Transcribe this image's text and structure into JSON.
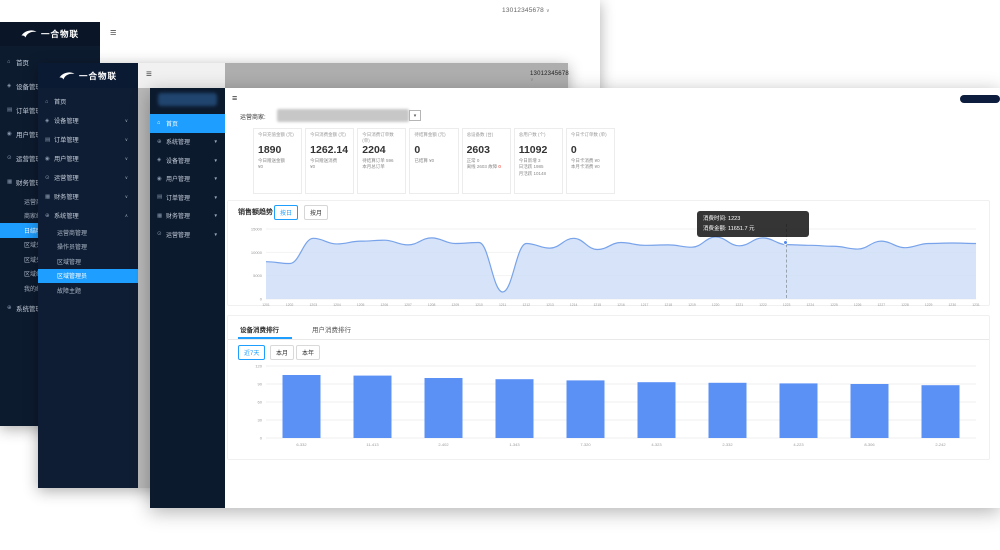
{
  "brand": {
    "logo_text": "一合物联"
  },
  "account": {
    "phone": "13012345678"
  },
  "icons": {
    "hamburger": "≡",
    "caret_collapsed": "∨",
    "caret_expanded": "∧",
    "caret_filled": "▼",
    "dropdown_caret": "▾",
    "menu_glyphs": {
      "home": "⌂",
      "system": "⊕",
      "device": "◈",
      "user": "◉",
      "order": "▤",
      "finance": "▦",
      "ops": "⊙"
    }
  },
  "window_back": {
    "menu": [
      {
        "label": "首页",
        "icon": "home"
      },
      {
        "label": "设备管理",
        "icon": "device",
        "caret": "collapsed"
      },
      {
        "label": "订单管理",
        "icon": "order",
        "caret": "collapsed"
      },
      {
        "label": "用户管理",
        "icon": "user",
        "caret": "collapsed"
      },
      {
        "label": "运营管理",
        "icon": "ops",
        "caret": "collapsed"
      },
      {
        "label": "财务管理",
        "icon": "finance",
        "caret": "expanded"
      },
      {
        "label": "运营商结算",
        "sub": true
      },
      {
        "label": "商家结算",
        "sub": true
      },
      {
        "label": "日结明细",
        "sub": true,
        "active": true
      },
      {
        "label": "区域分成",
        "sub": true
      },
      {
        "label": "区域分成明细",
        "sub": true
      },
      {
        "label": "区域结算",
        "sub": true
      },
      {
        "label": "我的结算",
        "sub": true
      },
      {
        "label": "系统管理",
        "icon": "system"
      }
    ]
  },
  "window_mid": {
    "menu": [
      {
        "label": "首页",
        "icon": "home"
      },
      {
        "label": "设备管理",
        "icon": "device",
        "caret": "collapsed"
      },
      {
        "label": "订单管理",
        "icon": "order",
        "caret": "collapsed"
      },
      {
        "label": "用户管理",
        "icon": "user",
        "caret": "collapsed"
      },
      {
        "label": "运营管理",
        "icon": "ops",
        "caret": "collapsed"
      },
      {
        "label": "财务管理",
        "icon": "finance",
        "caret": "collapsed"
      },
      {
        "label": "系统管理",
        "icon": "system",
        "caret": "expanded"
      },
      {
        "label": "运营商管理",
        "sub": true
      },
      {
        "label": "操作员管理",
        "sub": true
      },
      {
        "label": "区域管理",
        "sub": true
      },
      {
        "label": "区域管理员",
        "sub": true,
        "active": true
      },
      {
        "label": "故障主题",
        "sub": true
      }
    ]
  },
  "window_front": {
    "menu": [
      {
        "label": "首页",
        "icon": "home",
        "active": true
      },
      {
        "label": "系统管理",
        "icon": "system",
        "caret": "filled"
      },
      {
        "label": "设备管理",
        "icon": "device",
        "caret": "filled"
      },
      {
        "label": "用户管理",
        "icon": "user",
        "caret": "filled"
      },
      {
        "label": "订单管理",
        "icon": "order",
        "caret": "filled"
      },
      {
        "label": "财务管理",
        "icon": "finance",
        "caret": "filled"
      },
      {
        "label": "运营管理",
        "icon": "ops",
        "caret": "filled"
      }
    ],
    "merchant_label": "运营商家:",
    "cards": [
      {
        "label": "今日充值金额 (元)",
        "value": "1890",
        "lines": [
          "今日赠送金额",
          "¥0"
        ]
      },
      {
        "label": "今日消费金额 (元)",
        "value": "1262.14",
        "lines": [
          "今日赠送消费",
          "¥0"
        ]
      },
      {
        "label": "今日消费订单数 (单)",
        "value": "2204",
        "lines": [
          "待结算订单 596",
          "本月总订单"
        ]
      },
      {
        "label": "待结算金额 (元)",
        "value": "0",
        "lines": [
          "已结算 ¥0"
        ]
      },
      {
        "label": "总设备数 (台)",
        "value": "2603",
        "lines": [
          "正常 0",
          {
            "text": "离线 2603 故障 ",
            "red": "0"
          }
        ]
      },
      {
        "label": "总用户数 (个)",
        "value": "11092",
        "lines": [
          "今日新增 3",
          "日活跃 1985",
          "月活跃 10148"
        ]
      },
      {
        "label": "今日卡订单数 (单)",
        "value": "0",
        "lines": [
          "今日卡消费 ¥0",
          "本月卡消费 ¥0"
        ]
      }
    ],
    "sales": {
      "title": "销售额趋势",
      "tabs": [
        "按日",
        "按月"
      ],
      "active_tab": "按日",
      "tooltip_line1": "消费时间: 1223",
      "tooltip_line2": "消费金额: 11651.7 元"
    },
    "rank": {
      "tabs": [
        "设备消费排行",
        "用户消费排行"
      ],
      "active_tab": "设备消费排行",
      "filters": [
        "近7天",
        "本月",
        "本年"
      ],
      "active_filter": "近7天"
    }
  },
  "chart_data": [
    {
      "type": "area",
      "title": "销售额趋势",
      "x": [
        "1201",
        "1202",
        "1203",
        "1204",
        "1205",
        "1206",
        "1207",
        "1208",
        "1209",
        "1210",
        "1211",
        "1212",
        "1213",
        "1214",
        "1215",
        "1216",
        "1217",
        "1218",
        "1219",
        "1220",
        "1221",
        "1222",
        "1223",
        "1224",
        "1225",
        "1226",
        "1227",
        "1228",
        "1229",
        "1230",
        "1231"
      ],
      "values": [
        8000,
        7600,
        13000,
        11800,
        12400,
        12600,
        11600,
        13100,
        11900,
        12100,
        1500,
        11900,
        10900,
        13000,
        10600,
        12100,
        11500,
        11600,
        11100,
        13300,
        11400,
        13100,
        11651.7,
        11500,
        11300,
        10700,
        12400,
        11000,
        11900,
        12000,
        11900
      ],
      "ylim": [
        0,
        15000
      ],
      "yticks": [
        0,
        5000,
        10000,
        15000
      ],
      "grid": true,
      "legend_position": "none",
      "highlight": {
        "x": "1223",
        "value": 11651.7
      },
      "line_color": "#78a3ea",
      "fill_color": "#cfdef7"
    },
    {
      "type": "bar",
      "categories": [
        "6-332",
        "11-413",
        "2-402",
        "1-343",
        "7-320",
        "4-323",
        "2-332",
        "4-223",
        "8-306",
        "2-242"
      ],
      "values": [
        105,
        104,
        100,
        98,
        96,
        93,
        92,
        91,
        90,
        88
      ],
      "ylim": [
        0,
        120
      ],
      "yticks": [
        0,
        30,
        60,
        90,
        120
      ],
      "grid": true,
      "bar_color": "#5b90f5"
    }
  ]
}
